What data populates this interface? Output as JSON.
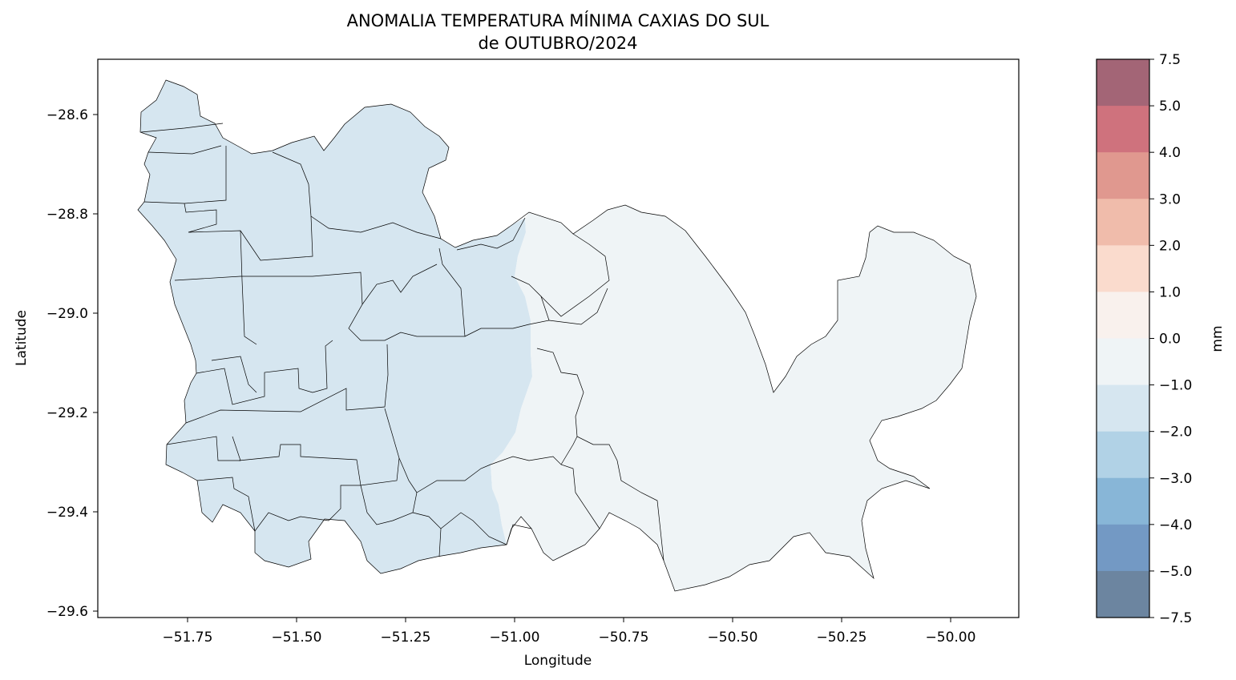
{
  "title_lines": [
    "ANOMALIA TEMPERATURA MÍNIMA CAXIAS DO SUL",
    "de OUTUBRO/2024"
  ],
  "xlabel": "Longitude",
  "ylabel": "Latitude",
  "x_ticks": [
    "−51.75",
    "−51.50",
    "−51.25",
    "−51.00",
    "−50.75",
    "−50.50",
    "−50.25",
    "−50.00"
  ],
  "y_ticks": [
    "−28.6",
    "−28.8",
    "−29.0",
    "−29.2",
    "−29.4",
    "−29.6"
  ],
  "colorbar": {
    "label": "mm",
    "ticks": [
      "7.5",
      "5.0",
      "4.0",
      "3.0",
      "2.0",
      "1.0",
      "0.0",
      "−1.0",
      "−2.0",
      "−3.0",
      "−4.0",
      "−5.0",
      "−7.5"
    ],
    "colors": [
      "#a36576",
      "#cf727d",
      "#e0988f",
      "#f0bcab",
      "#fadbcd",
      "#f9f1ed",
      "#eff4f6",
      "#d6e6f0",
      "#b1d2e6",
      "#88b6d7",
      "#7399c4",
      "#6c85a0"
    ]
  },
  "chart_data": {
    "type": "heatmap",
    "title": "ANOMALIA TEMPERATURA MÍNIMA CAXIAS DO SUL de OUTUBRO/2024",
    "xlabel": "Longitude",
    "ylabel": "Latitude",
    "xlim": [
      -51.95,
      -49.85
    ],
    "ylim": [
      -29.615,
      -28.49
    ],
    "colorbar_label": "mm",
    "colorbar_range": [
      -7.5,
      7.5
    ],
    "bins": [
      -7.5,
      -5,
      -4,
      -3,
      -2,
      -1,
      0,
      1,
      2,
      3,
      4,
      5,
      7.5
    ],
    "regions": [
      {
        "name": "western region",
        "anomaly_bin": [
          -2.0,
          -1.0
        ],
        "color": "#d6e6f0"
      },
      {
        "name": "eastern region",
        "anomaly_bin": [
          -1.0,
          0.0
        ],
        "color": "#eff4f6"
      }
    ]
  }
}
